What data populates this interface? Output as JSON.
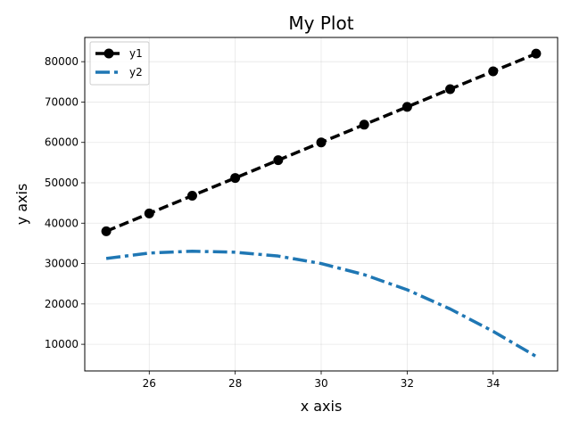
{
  "chart_data": {
    "type": "line",
    "title": "My Plot",
    "xlabel": "x axis",
    "ylabel": "y axis",
    "x": [
      25,
      26,
      27,
      28,
      29,
      30,
      31,
      32,
      33,
      34,
      35
    ],
    "xlim": [
      24.5,
      35.5
    ],
    "ylim": [
      3400,
      86000
    ],
    "xticks": [
      26,
      28,
      30,
      32,
      34
    ],
    "yticks": [
      10000,
      20000,
      30000,
      40000,
      50000,
      60000,
      70000,
      80000
    ],
    "grid": true,
    "legend_position": "top-left",
    "series": [
      {
        "name": "y1",
        "values": [
          38000,
          42400,
          46800,
          51200,
          55600,
          60000,
          64400,
          68800,
          73200,
          77600,
          82000
        ],
        "color": "#000000",
        "line_style": "dashed",
        "marker": "circle"
      },
      {
        "name": "y2",
        "values": [
          31250,
          32600,
          33050,
          32800,
          31850,
          30000,
          27250,
          23500,
          18750,
          13200,
          7000
        ],
        "color": "#1f77b4",
        "line_style": "dash-dot",
        "marker": "none"
      }
    ]
  }
}
